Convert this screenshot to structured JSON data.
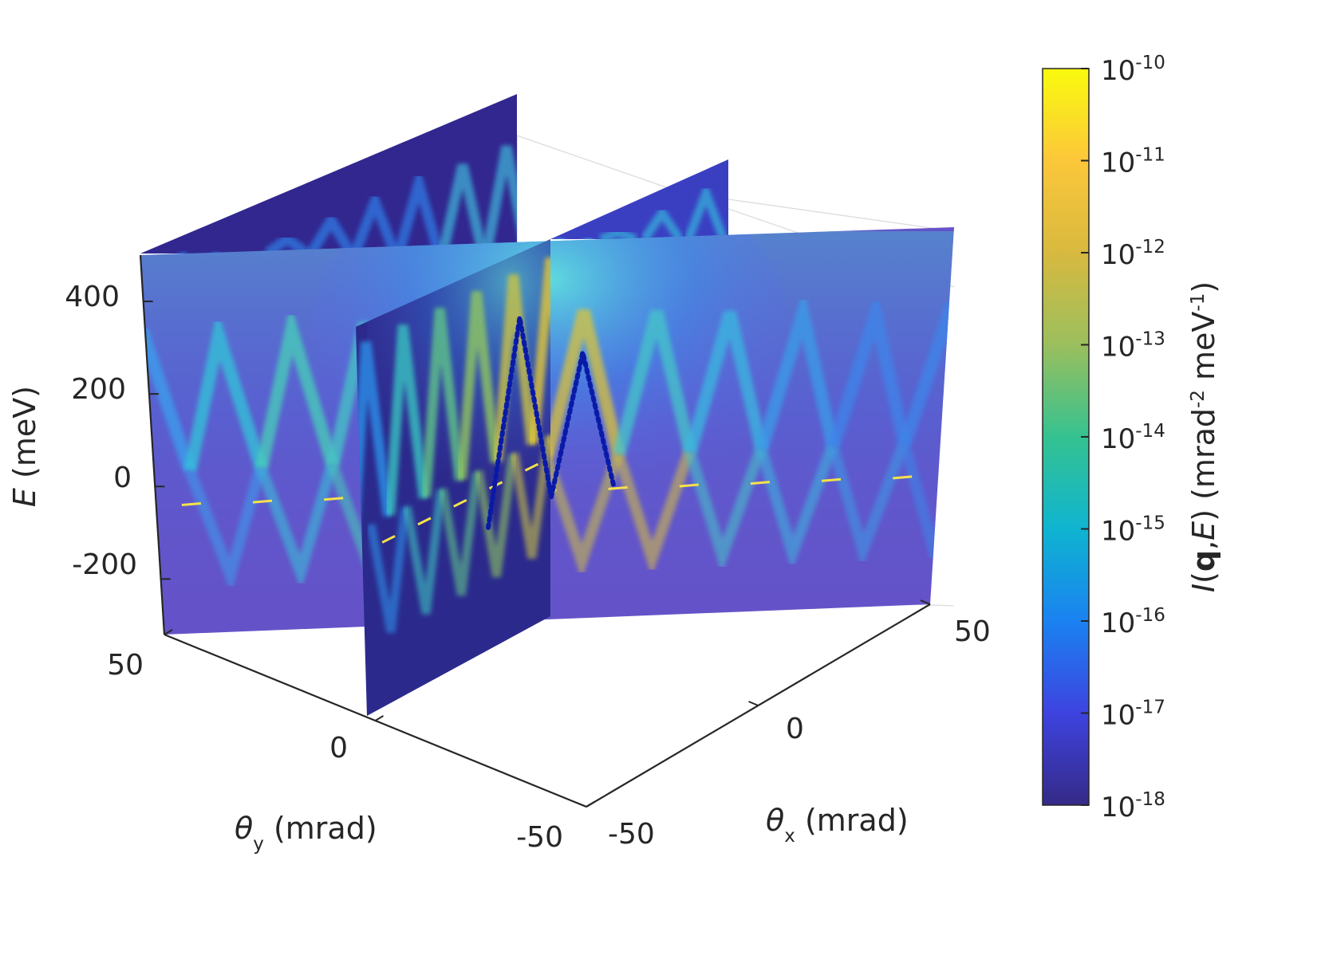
{
  "chart_data": {
    "type": "3d-slice-heatmap",
    "axes": {
      "x": {
        "label_symbol": "θ",
        "label_sub": "x",
        "label_unit": " (mrad)",
        "ticks": [
          "-50",
          "0",
          "50"
        ],
        "range": [
          -50,
          50
        ]
      },
      "y": {
        "label_symbol": "θ",
        "label_sub": "y",
        "label_unit": " (mrad)",
        "ticks": [
          "50",
          "0",
          "-50"
        ],
        "range": [
          -50,
          50
        ]
      },
      "z": {
        "label_italic": "E",
        "label_unit": " (meV)",
        "ticks": [
          "400",
          "200",
          "0",
          "-200"
        ],
        "range": [
          -320,
          500
        ]
      }
    },
    "colorbar": {
      "label_italic_I": "I",
      "label_open": "(",
      "label_bold_q": "q",
      "label_comma": ",",
      "label_italic_E": "E",
      "label_close": ") (mrad",
      "label_sup1": "-2",
      "label_mid": " meV",
      "label_sup2": "-1",
      "label_end": ")",
      "scale": "log",
      "tick_base": "10",
      "tick_exponents": [
        "-10",
        "-11",
        "-12",
        "-13",
        "-14",
        "-15",
        "-16",
        "-17",
        "-18"
      ],
      "range": [
        1e-18,
        1e-10
      ],
      "colormap": [
        "#352a87",
        "#3e43e0",
        "#1a82f1",
        "#0fb4d0",
        "#35c290",
        "#9bbf5d",
        "#d8b93f",
        "#fcc73a",
        "#f9fb0e"
      ]
    },
    "slices": [
      {
        "plane": "theta_y = 50 (back)",
        "bands": 8
      },
      {
        "plane": "theta_x = 0",
        "bands": 6
      },
      {
        "plane": "theta_y = 0",
        "bands": 11
      }
    ],
    "overlay_dotted_dispersion": {
      "color": "#0a1aa8",
      "points_thetax_E": [
        [
          -10,
          -50
        ],
        [
          -5,
          430
        ],
        [
          0,
          20
        ],
        [
          5,
          350
        ],
        [
          10,
          40
        ]
      ]
    }
  }
}
